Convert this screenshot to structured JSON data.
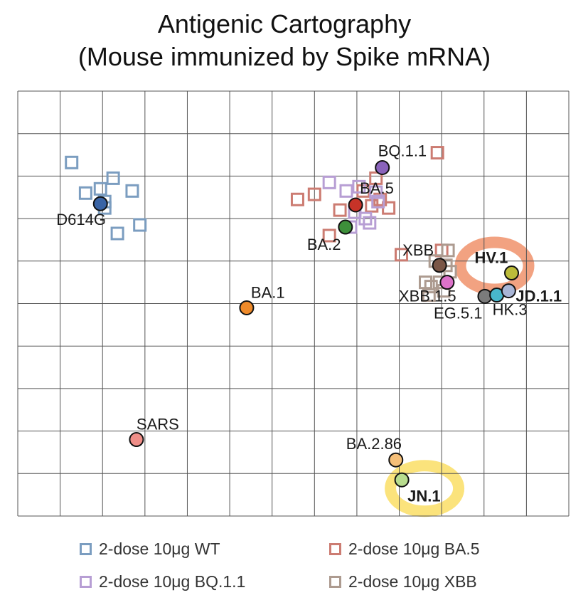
{
  "chart_data": {
    "type": "scatter",
    "title_lines": [
      "Antigenic Cartography",
      "(Mouse immunized by Spike mRNA)"
    ],
    "xlim": [
      0,
      13
    ],
    "ylim": [
      0,
      10
    ],
    "grid": true,
    "antigens": [
      {
        "label": "D614G",
        "x": 1.95,
        "y": 7.35,
        "color": "#3a64a5",
        "bold": false,
        "label_pos": "below-left"
      },
      {
        "label": "BA.1",
        "x": 5.4,
        "y": 4.9,
        "color": "#ee8a2a",
        "bold": false,
        "label_pos": "above"
      },
      {
        "label": "BA.2",
        "x": 7.73,
        "y": 6.8,
        "color": "#3d8f3a",
        "bold": false,
        "label_pos": "below-left"
      },
      {
        "label": "BA.5",
        "x": 7.97,
        "y": 7.32,
        "color": "#c73328",
        "bold": false,
        "label_pos": "above"
      },
      {
        "label": "BQ.1.1",
        "x": 8.6,
        "y": 8.2,
        "color": "#8a63bb",
        "bold": false,
        "label_pos": "above"
      },
      {
        "label": "XBB",
        "x": 9.95,
        "y": 5.9,
        "color": "#7a5647",
        "bold": false,
        "label_pos": "above-left"
      },
      {
        "label": "XBB.1.5",
        "x": 10.13,
        "y": 5.5,
        "color": "#dc72c9",
        "bold": false,
        "label_pos": "below-left"
      },
      {
        "label": "EG.5.1",
        "x": 11.02,
        "y": 5.17,
        "color": "#7b7b7b",
        "bold": false,
        "label_pos": "below"
      },
      {
        "label": "HK.3",
        "x": 11.3,
        "y": 5.2,
        "color": "#48b7cc",
        "bold": false,
        "label_pos": "below-right"
      },
      {
        "label": "JD.1.1",
        "x": 11.58,
        "y": 5.3,
        "color": "#a8b5d6",
        "bold": true,
        "label_pos": "right"
      },
      {
        "label": "HV.1",
        "x": 11.65,
        "y": 5.72,
        "color": "#bcbc3a",
        "bold": true,
        "label_pos": "left"
      },
      {
        "label": "SARS",
        "x": 2.8,
        "y": 1.8,
        "color": "#ef8e88",
        "bold": false,
        "label_pos": "above-right"
      },
      {
        "label": "BA.2.86",
        "x": 8.92,
        "y": 1.32,
        "color": "#f5bf79",
        "bold": false,
        "label_pos": "above-left"
      },
      {
        "label": "JN.1",
        "x": 9.06,
        "y": 0.85,
        "color": "#b8dc8e",
        "bold": true,
        "label_pos": "below-right"
      }
    ],
    "series": [
      {
        "name": "2-dose 10μg WT",
        "color": "#7b9dc0",
        "points": [
          [
            1.27,
            8.32
          ],
          [
            1.6,
            7.6
          ],
          [
            1.95,
            7.7
          ],
          [
            2.25,
            7.95
          ],
          [
            2.7,
            7.65
          ],
          [
            2.05,
            7.4
          ],
          [
            2.05,
            7.25
          ],
          [
            2.35,
            6.65
          ],
          [
            2.88,
            6.85
          ]
        ]
      },
      {
        "name": "2-dose 10μg BA.5",
        "color": "#cc7c72",
        "points": [
          [
            9.9,
            8.55
          ],
          [
            8.45,
            7.95
          ],
          [
            8.55,
            7.45
          ],
          [
            7.0,
            7.57
          ],
          [
            6.6,
            7.45
          ],
          [
            8.75,
            7.25
          ],
          [
            8.35,
            7.3
          ],
          [
            7.6,
            7.2
          ],
          [
            7.35,
            6.6
          ],
          [
            8.15,
            7.65
          ],
          [
            9.05,
            6.15
          ],
          [
            10.0,
            6.25
          ]
        ]
      },
      {
        "name": "2-dose 10μg BQ.1.1",
        "color": "#b79ed4",
        "points": [
          [
            7.35,
            7.85
          ],
          [
            7.75,
            7.65
          ],
          [
            8.05,
            7.75
          ],
          [
            8.45,
            7.62
          ],
          [
            7.95,
            7.15
          ],
          [
            8.2,
            7.0
          ],
          [
            7.85,
            6.8
          ],
          [
            8.3,
            6.9
          ],
          [
            8.5,
            7.4
          ]
        ]
      },
      {
        "name": "2-dose 10μg XBB",
        "color": "#ad9b90",
        "points": [
          [
            10.15,
            6.25
          ],
          [
            10.1,
            5.9
          ],
          [
            9.85,
            6.0
          ],
          [
            9.62,
            5.5
          ],
          [
            9.75,
            5.4
          ],
          [
            9.95,
            5.5
          ],
          [
            10.05,
            5.3
          ],
          [
            10.2,
            5.75
          ],
          [
            9.7,
            5.2
          ]
        ]
      }
    ],
    "legend": [
      {
        "label": "2-dose 10μg WT",
        "color": "#7b9dc0"
      },
      {
        "label": "2-dose 10μg BA.5",
        "color": "#cc7c72"
      },
      {
        "label": "2-dose 10μg BQ.1.1",
        "color": "#b79ed4"
      },
      {
        "label": "2-dose 10μg XBB",
        "color": "#ad9b90"
      }
    ],
    "highlights": [
      {
        "around": "HV.1",
        "color": "#f2a281"
      },
      {
        "around": "JN.1",
        "color": "#fbe37c"
      }
    ]
  }
}
